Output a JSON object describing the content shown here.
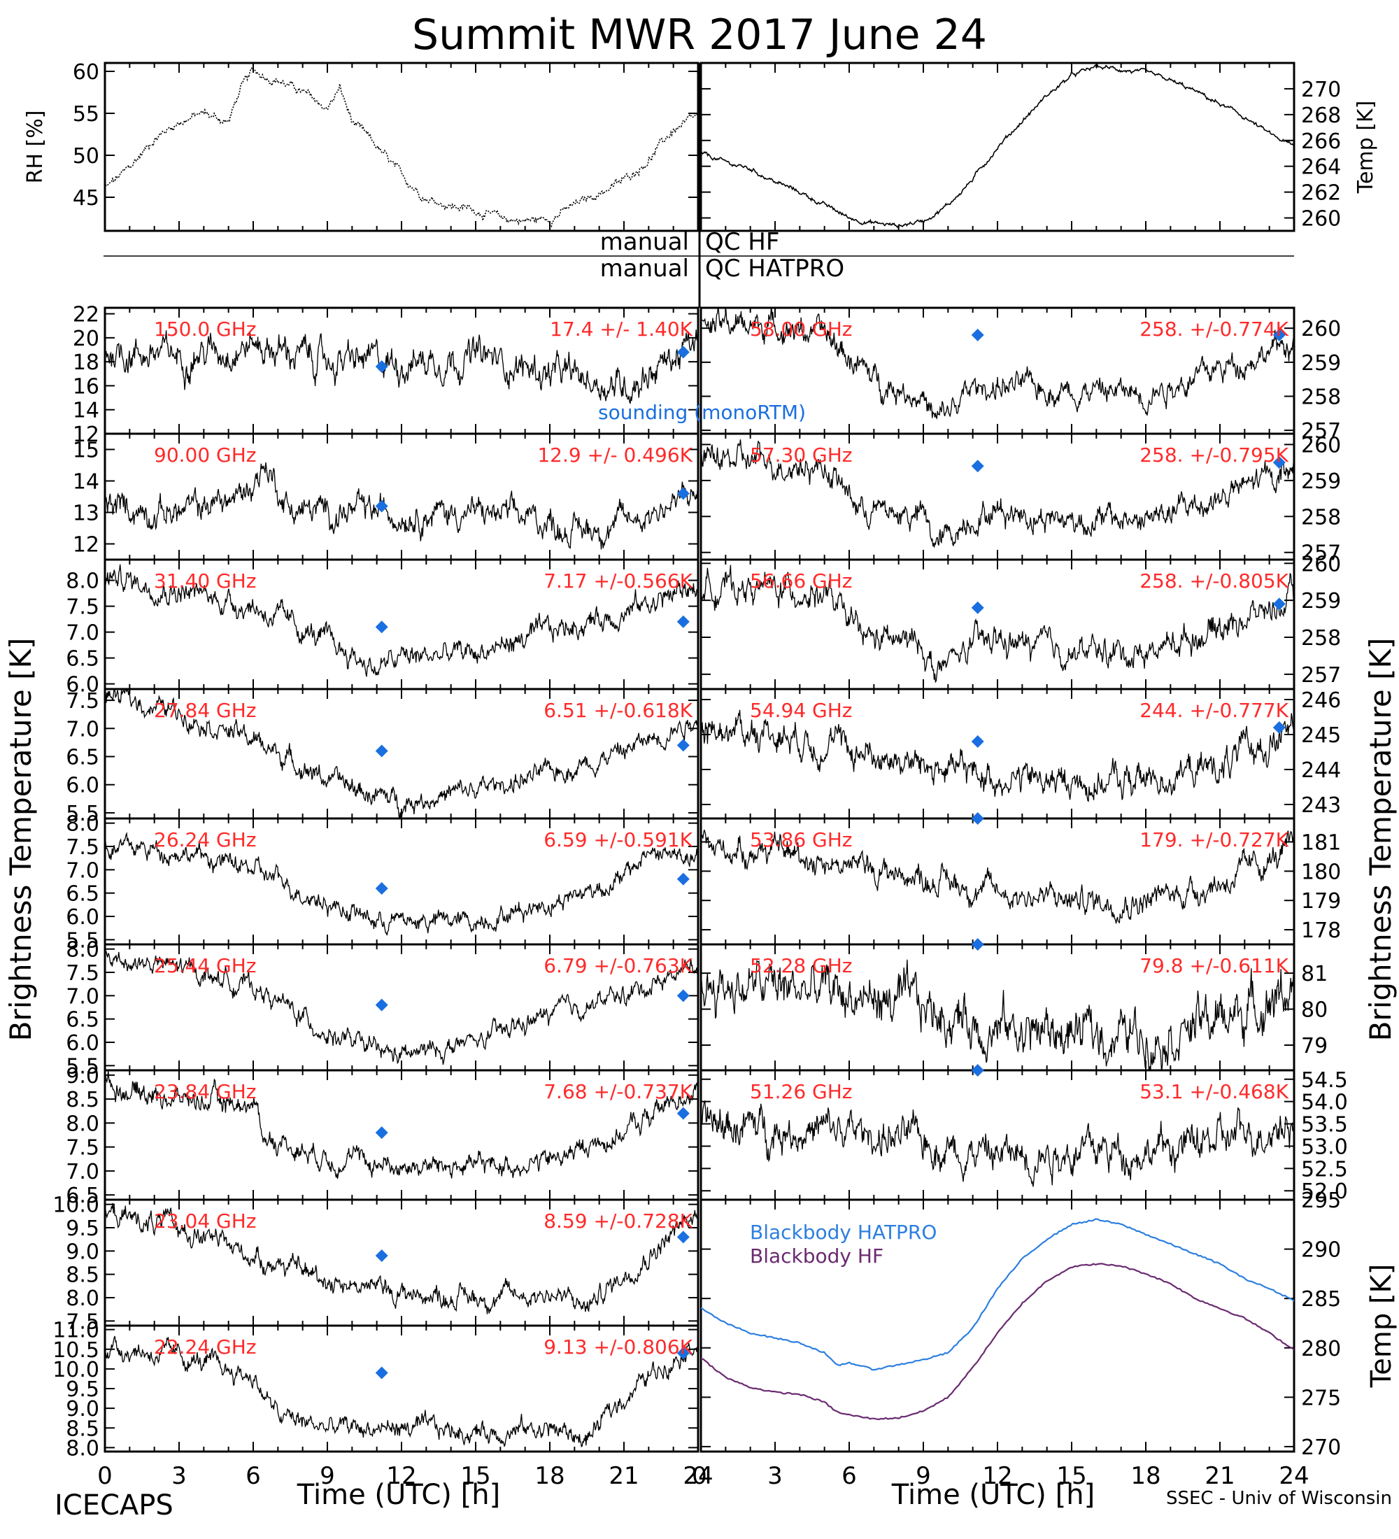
{
  "figure": {
    "title": "Summit MWR 2017 June 24",
    "left_ylabel": "Brightness Temperature [K]",
    "right_ylabel": "Brightness Temperature [K]",
    "xlabel": "Time (UTC) [h]",
    "footer_left": "ICECAPS",
    "footer_right": "SSEC - Univ of Wisconsin",
    "qc_hf_label_left": "manual",
    "qc_hf_label_right": "QC HF",
    "qc_hatpro_label_left": "manual",
    "qc_hatpro_label_right": "QC HATPRO",
    "sounding_label": "sounding (monoRTM)",
    "colors": {
      "trace": "#000000",
      "sounding": "#1a6fe0",
      "freq_label": "#ff2a2a",
      "bb_hatpro": "#2d7fe0",
      "bb_hf": "#6a2a70"
    }
  },
  "chart_data": [
    {
      "id": "rh",
      "type": "line",
      "ylabel": "RH [%]",
      "xlim": [
        0,
        24
      ],
      "ylim": [
        41,
        61
      ],
      "yticks": [
        45,
        50,
        55,
        60
      ],
      "x": [
        0,
        1,
        2,
        3,
        4,
        5,
        5.5,
        6,
        6.5,
        7,
        8,
        9,
        9.5,
        10,
        11,
        12,
        13,
        14,
        15,
        16,
        17,
        18,
        19,
        20,
        21,
        22,
        23,
        24
      ],
      "y": [
        46,
        48.5,
        52,
        54,
        55,
        54,
        58,
        60,
        59.5,
        59,
        57.5,
        55.5,
        58,
        54,
        51,
        47.5,
        45,
        44,
        43.5,
        42.5,
        42.2,
        42.5,
        44,
        45.5,
        47,
        49.5,
        53,
        54.5
      ]
    },
    {
      "id": "temp",
      "type": "line",
      "ylabel": "Temp [K]",
      "xlim": [
        0,
        24
      ],
      "ylim": [
        259,
        272
      ],
      "yticks": [
        260,
        262,
        264,
        266,
        268,
        270
      ],
      "x": [
        0,
        1,
        2,
        3,
        4,
        5,
        6,
        7,
        8,
        9,
        10,
        11,
        12,
        13,
        14,
        15,
        16,
        17,
        18,
        19,
        20,
        21,
        22,
        23,
        24
      ],
      "y": [
        265,
        264.3,
        263.8,
        262.8,
        262,
        261,
        260,
        259.6,
        259.4,
        259.8,
        261,
        263,
        265.5,
        267.5,
        269.5,
        271,
        271.7,
        271.5,
        271.2,
        270.6,
        269.8,
        268.8,
        267.8,
        266.5,
        265.5
      ]
    },
    {
      "id": "hf150",
      "type": "line",
      "freq": "150.0 GHz",
      "stat": "17.4 +/-  1.40K",
      "ylim": [
        12,
        22.5
      ],
      "yticks": [
        12,
        14,
        16,
        18,
        20,
        22
      ],
      "noise": 0.9,
      "x": [
        0,
        3,
        6,
        9,
        12,
        15,
        18,
        21,
        24
      ],
      "y": [
        19,
        18.5,
        19.5,
        18,
        18,
        18.5,
        17,
        16,
        19.5
      ],
      "sounding": [
        {
          "x": 11.2,
          "y": 17.6
        },
        {
          "x": 23.4,
          "y": 18.8
        }
      ]
    },
    {
      "id": "hf90",
      "type": "line",
      "freq": "90.00 GHz",
      "stat": "12.9 +/- 0.496K",
      "ylim": [
        11.5,
        15.5
      ],
      "yticks": [
        12,
        13,
        14,
        15
      ],
      "noise": 0.3,
      "x": [
        0,
        3,
        5.5,
        6.5,
        7.5,
        9,
        12,
        15,
        18,
        19,
        21,
        24
      ],
      "y": [
        13.2,
        13,
        13.5,
        14.5,
        13.1,
        13,
        13,
        13,
        12.7,
        12.4,
        12.7,
        13.6
      ],
      "sounding": [
        {
          "x": 11.2,
          "y": 13.2
        },
        {
          "x": 23.4,
          "y": 13.6
        }
      ]
    },
    {
      "id": "hatpro3140",
      "type": "line",
      "freq": "31.40 GHz",
      "stat": "7.17 +/-0.566K",
      "ylim": [
        5.9,
        8.4
      ],
      "yticks": [
        6,
        6.5,
        7,
        7.5,
        8
      ],
      "noise": 0.15,
      "x": [
        0,
        3,
        6,
        9,
        11,
        12,
        15,
        18,
        21,
        24
      ],
      "y": [
        8.1,
        7.8,
        7.5,
        6.8,
        6.3,
        6.5,
        6.6,
        7,
        7.4,
        7.9
      ],
      "sounding": [
        {
          "x": 11.2,
          "y": 7.1
        },
        {
          "x": 23.4,
          "y": 7.2
        }
      ]
    },
    {
      "id": "hatpro2784",
      "type": "line",
      "freq": "27.84 GHz",
      "stat": "6.51 +/-0.618K",
      "ylim": [
        5.4,
        7.7
      ],
      "yticks": [
        5.5,
        6,
        6.5,
        7,
        7.5
      ],
      "noise": 0.12,
      "x": [
        0,
        3,
        6,
        9,
        11,
        12,
        15,
        18,
        21,
        24
      ],
      "y": [
        7.6,
        7.3,
        6.8,
        6.1,
        5.8,
        5.7,
        5.9,
        6.2,
        6.6,
        7.2
      ],
      "sounding": [
        {
          "x": 11.2,
          "y": 6.6
        },
        {
          "x": 23.4,
          "y": 6.7
        }
      ]
    },
    {
      "id": "hatpro2624",
      "type": "line",
      "freq": "26.24 GHz",
      "stat": "6.59 +/-0.591K",
      "ylim": [
        5.4,
        8.1
      ],
      "yticks": [
        5.5,
        6,
        6.5,
        7,
        7.5,
        8
      ],
      "noise": 0.14,
      "x": [
        0,
        3,
        6,
        9,
        11,
        12,
        15,
        18,
        21,
        22,
        24
      ],
      "y": [
        7.5,
        7.4,
        7,
        6.3,
        5.9,
        5.9,
        5.9,
        6.3,
        6.8,
        7.4,
        7.2
      ],
      "sounding": [
        {
          "x": 11.2,
          "y": 6.6
        },
        {
          "x": 23.4,
          "y": 6.8
        }
      ]
    },
    {
      "id": "hatpro2544",
      "type": "line",
      "freq": "25.44 GHz",
      "stat": "6.79 +/-0.763K",
      "ylim": [
        5.4,
        8.1
      ],
      "yticks": [
        5.5,
        6,
        6.5,
        7,
        7.5,
        8
      ],
      "noise": 0.14,
      "x": [
        0,
        3,
        6,
        9,
        11,
        12,
        15,
        18,
        21,
        24
      ],
      "y": [
        7.8,
        7.6,
        7.2,
        6.2,
        5.8,
        5.7,
        6,
        6.6,
        7,
        7.7
      ],
      "sounding": [
        {
          "x": 11.2,
          "y": 6.8
        },
        {
          "x": 23.4,
          "y": 7
        }
      ]
    },
    {
      "id": "hatpro2384",
      "type": "line",
      "freq": "23.84 GHz",
      "stat": "7.68 +/-0.737K",
      "ylim": [
        6.4,
        9.1
      ],
      "yticks": [
        6.5,
        7,
        7.5,
        8,
        8.5,
        9
      ],
      "noise": 0.15,
      "x": [
        0,
        3,
        6,
        6.5,
        9,
        12,
        15,
        18,
        21,
        24
      ],
      "y": [
        8.8,
        8.5,
        8.4,
        7.7,
        7.3,
        7.1,
        7.1,
        7.2,
        7.8,
        8.8
      ],
      "sounding": [
        {
          "x": 11.2,
          "y": 7.8
        },
        {
          "x": 23.4,
          "y": 8.2
        }
      ]
    },
    {
      "id": "hatpro2304",
      "type": "line",
      "freq": "23.04 GHz",
      "stat": "8.59 +/-0.728K",
      "ylim": [
        7.4,
        10.1
      ],
      "yticks": [
        7.5,
        8,
        8.5,
        9,
        9.5,
        10
      ],
      "noise": 0.15,
      "x": [
        0,
        3,
        6,
        9,
        12,
        15,
        18,
        19.5,
        21,
        24
      ],
      "y": [
        9.8,
        9.5,
        8.9,
        8.4,
        8.1,
        8,
        8.1,
        7.8,
        8.5,
        9.8
      ],
      "sounding": [
        {
          "x": 11.2,
          "y": 8.9
        },
        {
          "x": 23.4,
          "y": 9.3
        }
      ]
    },
    {
      "id": "hatpro2224",
      "type": "line",
      "freq": "22.24 GHz",
      "stat": "9.13 +/-0.806K",
      "ylim": [
        7.9,
        11.1
      ],
      "yticks": [
        8,
        8.5,
        9,
        9.5,
        10,
        10.5,
        11
      ],
      "noise": 0.17,
      "x": [
        0,
        3,
        6,
        7,
        9,
        12,
        15,
        18,
        19.5,
        21,
        24
      ],
      "y": [
        10.6,
        10.3,
        9.8,
        8.8,
        8.5,
        8.5,
        8.4,
        8.5,
        8.2,
        9.3,
        10.8
      ],
      "sounding": [
        {
          "x": 11.2,
          "y": 9.9
        },
        {
          "x": 23.4,
          "y": 10.4
        }
      ]
    },
    {
      "id": "hatpro5800",
      "type": "line",
      "freq": "58.00 GHz",
      "stat": "258. +/-0.774K",
      "ylim": [
        256.9,
        260.6
      ],
      "yticks": [
        257,
        258,
        259,
        260
      ],
      "noise": 0.25,
      "x": [
        0,
        3,
        5,
        7,
        9,
        9.5,
        11,
        12,
        15,
        18,
        21,
        24
      ],
      "y": [
        260.1,
        260.1,
        259.8,
        258.5,
        258,
        257.2,
        258.2,
        258.3,
        258.2,
        258.1,
        258.8,
        259.6
      ],
      "sounding": [
        {
          "x": 11.2,
          "y": 259.8
        },
        {
          "x": 23.4,
          "y": 259.8
        }
      ]
    },
    {
      "id": "hatpro5730",
      "type": "line",
      "freq": "57.30 GHz",
      "stat": "258. +/-0.795K",
      "ylim": [
        256.8,
        260.3
      ],
      "yticks": [
        257,
        258,
        259,
        260
      ],
      "noise": 0.25,
      "x": [
        0,
        3,
        5,
        6.5,
        9,
        9.5,
        11,
        12,
        15,
        18,
        21,
        24
      ],
      "y": [
        259.6,
        259.5,
        259.4,
        258.2,
        258,
        257.2,
        258,
        258.2,
        257.9,
        257.9,
        258.5,
        259.4
      ],
      "sounding": [
        {
          "x": 11.2,
          "y": 259.4
        },
        {
          "x": 23.4,
          "y": 259.5
        }
      ]
    },
    {
      "id": "hatpro5666",
      "type": "line",
      "freq": "56.66 GHz",
      "stat": "258. +/-0.805K",
      "ylim": [
        256.6,
        260.1
      ],
      "yticks": [
        257,
        258,
        259,
        260
      ],
      "noise": 0.25,
      "x": [
        0,
        3,
        5,
        6.5,
        9,
        9.5,
        11,
        12,
        15,
        18,
        21,
        24
      ],
      "y": [
        259.4,
        259.3,
        259.2,
        258,
        257.8,
        257,
        257.8,
        257.9,
        257.6,
        257.6,
        258.3,
        259
      ],
      "sounding": [
        {
          "x": 11.2,
          "y": 258.8
        },
        {
          "x": 23.4,
          "y": 258.9
        }
      ]
    },
    {
      "id": "hatpro5494",
      "type": "line",
      "freq": "54.94 GHz",
      "stat": "244. +/-0.777K",
      "ylim": [
        242.6,
        246.3
      ],
      "yticks": [
        243,
        244,
        245,
        246
      ],
      "noise": 0.3,
      "x": [
        0,
        3,
        6,
        9,
        12,
        15,
        18,
        21,
        24
      ],
      "y": [
        245.2,
        245.1,
        244.6,
        244.1,
        243.8,
        243.6,
        243.7,
        244.1,
        245.1
      ],
      "sounding": [
        {
          "x": 11.2,
          "y": 244.8
        },
        {
          "x": 23.4,
          "y": 245.2
        }
      ]
    },
    {
      "id": "hatpro5386",
      "type": "line",
      "freq": "53.86 GHz",
      "stat": "179. +/-0.727K",
      "ylim": [
        177.5,
        181.8
      ],
      "yticks": [
        178,
        179,
        180,
        181
      ],
      "noise": 0.3,
      "x": [
        0,
        3,
        6,
        9,
        12,
        15,
        18,
        21,
        24
      ],
      "y": [
        180.8,
        180.7,
        180.2,
        179.8,
        179.3,
        179,
        179,
        179.6,
        180.7
      ],
      "sounding": [
        {
          "x": 11.2,
          "y": 182.1
        }
      ]
    },
    {
      "id": "hatpro5228",
      "type": "line",
      "freq": "52.28 GHz",
      "stat": "79.8 +/-0.611K",
      "ylim": [
        78.3,
        81.8
      ],
      "yticks": [
        79,
        80,
        81
      ],
      "noise": 0.45,
      "x": [
        0,
        3,
        6,
        9,
        12,
        15,
        18,
        21,
        24
      ],
      "y": [
        80.7,
        80.6,
        80.4,
        80,
        79.5,
        79.3,
        79.3,
        79.7,
        80.6
      ],
      "sounding": [
        {
          "x": 11.2,
          "y": 81.8
        }
      ]
    },
    {
      "id": "hatpro5126",
      "type": "line",
      "freq": "51.26 GHz",
      "stat": "53.1 +/-0.468K",
      "ylim": [
        51.8,
        54.7
      ],
      "yticks": [
        52,
        52.5,
        53,
        53.5,
        54,
        54.5
      ],
      "noise": 0.28,
      "x": [
        0,
        3,
        6,
        9,
        12,
        15,
        18,
        21,
        24
      ],
      "y": [
        53.5,
        53.4,
        53.3,
        53.1,
        52.8,
        52.9,
        52.9,
        53.1,
        53.6
      ],
      "sounding": [
        {
          "x": 11.2,
          "y": 54.8
        }
      ]
    },
    {
      "id": "blackbody",
      "type": "line",
      "ylabel": "Temp [K]",
      "xlim": [
        0,
        24
      ],
      "ylim": [
        269.5,
        295
      ],
      "yticks": [
        270,
        275,
        280,
        285,
        290,
        295
      ],
      "series": [
        {
          "name": "Blackbody HATPRO",
          "color": "#2d7fe0",
          "x": [
            0,
            1,
            2,
            3,
            4,
            5,
            5.5,
            6,
            7,
            8,
            9,
            10,
            11,
            12,
            13,
            14,
            15,
            16,
            17,
            18,
            19,
            20,
            21,
            22,
            23,
            24
          ],
          "y": [
            284,
            282.5,
            281.5,
            281,
            280.5,
            279.5,
            278.2,
            278.5,
            277.8,
            278.3,
            278.8,
            279.5,
            282,
            286,
            289,
            291,
            292.5,
            293,
            292.5,
            291.5,
            290.5,
            289.5,
            288.5,
            287,
            286,
            284.8
          ]
        },
        {
          "name": "Blackbody HF",
          "color": "#6a2a70",
          "x": [
            0,
            1,
            2,
            3,
            4,
            5,
            5.5,
            6,
            7,
            8,
            9,
            10,
            11,
            12,
            13,
            14,
            15,
            16,
            17,
            18,
            19,
            20,
            21,
            22,
            23,
            24
          ],
          "y": [
            279,
            277,
            276,
            275.5,
            275.3,
            274.5,
            273.5,
            273.2,
            272.8,
            272.9,
            273.6,
            275,
            278,
            281.5,
            284.5,
            286.8,
            288.2,
            288.5,
            288.3,
            287.5,
            286.5,
            285,
            284,
            283,
            281.5,
            279.8
          ]
        }
      ]
    }
  ]
}
